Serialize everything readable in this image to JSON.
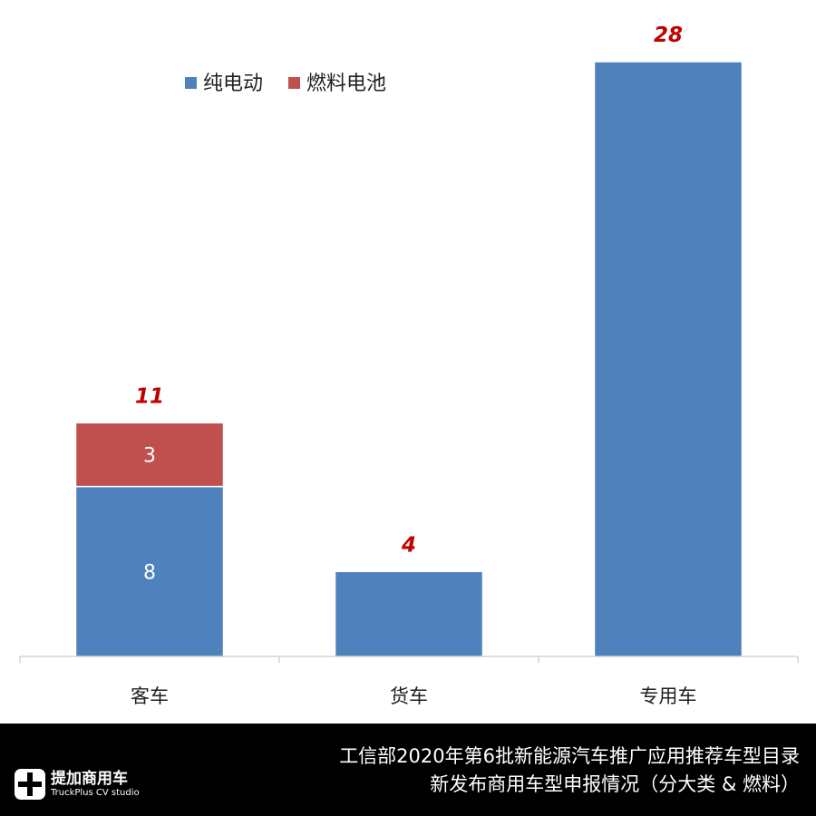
{
  "chart_data": {
    "type": "bar",
    "stacked": true,
    "categories": [
      "客车",
      "货车",
      "专用车"
    ],
    "series": [
      {
        "name": "纯电动",
        "values": [
          8,
          4,
          28
        ],
        "color": "#4F81BD"
      },
      {
        "name": "燃料电池",
        "values": [
          3,
          0,
          0
        ],
        "color": "#C0504D"
      }
    ],
    "segment_labels": [
      [
        "8",
        "3"
      ],
      [],
      []
    ],
    "totals": [
      "11",
      "4",
      "28"
    ],
    "total_label_color": "#C00000",
    "ylim": [
      0,
      28
    ],
    "grid": false,
    "legend_position": "top-left"
  },
  "footer": {
    "title_line1": "工信部2020年第6批新能源汽车推广应用推荐车型目录",
    "title_line2": "新发布商用车型申报情况（分大类 & 燃料）",
    "logo_cn": "提加商用车",
    "logo_en": "TruckPlus CV studio"
  }
}
